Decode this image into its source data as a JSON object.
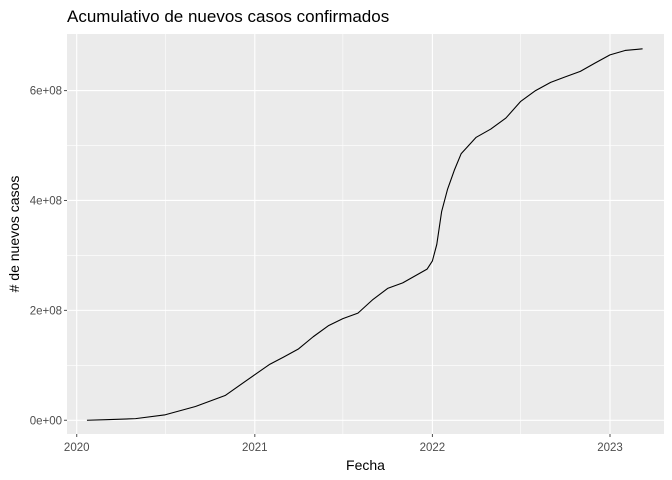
{
  "chart_data": {
    "type": "line",
    "title": "Acumulativo de nuevos casos confirmados",
    "xlabel": "Fecha",
    "ylabel": "# de nuevos casos",
    "xlim": [
      "2019-12-12",
      "2023-04-22"
    ],
    "ylim": [
      -25000000,
      703000000
    ],
    "x_ticks": [
      "2020-01-01",
      "2020-07-01",
      "2021-01-01",
      "2021-07-01",
      "2022-01-01",
      "2022-07-01",
      "2023-01-01"
    ],
    "x_tick_labels": [
      "2020",
      "2021",
      "2022",
      "2023"
    ],
    "y_ticks": [
      0,
      100000000,
      200000000,
      300000000,
      400000000,
      500000000,
      600000000
    ],
    "y_tick_labels": [
      "0e+00",
      "2e+08",
      "4e+08",
      "6e+08"
    ],
    "grid": true,
    "colors": {
      "panel": "#ebebeb",
      "grid": "#ffffff",
      "line": "#000000",
      "ticks": "#4d4d4d"
    },
    "series": [
      {
        "x": [
          "2020-01-22",
          "2020-03-01",
          "2020-05-01",
          "2020-07-01",
          "2020-09-01",
          "2020-11-01",
          "2021-01-01",
          "2021-02-01",
          "2021-03-01",
          "2021-04-01",
          "2021-05-01",
          "2021-06-01",
          "2021-07-01",
          "2021-08-01",
          "2021-09-01",
          "2021-10-01",
          "2021-11-01",
          "2021-12-01",
          "2021-12-21",
          "2022-01-01",
          "2022-01-10",
          "2022-01-20",
          "2022-02-01",
          "2022-02-15",
          "2022-03-01",
          "2022-04-01",
          "2022-05-01",
          "2022-06-01",
          "2022-07-01",
          "2022-08-01",
          "2022-09-01",
          "2022-10-01",
          "2022-11-01",
          "2022-12-01",
          "2023-01-01",
          "2023-02-01",
          "2023-03-09"
        ],
        "y": [
          0,
          1000000,
          3000000,
          10000000,
          25000000,
          45000000,
          83000000,
          102000000,
          115000000,
          130000000,
          152000000,
          172000000,
          185000000,
          195000000,
          220000000,
          240000000,
          250000000,
          265000000,
          275000000,
          290000000,
          320000000,
          380000000,
          420000000,
          455000000,
          485000000,
          515000000,
          530000000,
          550000000,
          580000000,
          600000000,
          615000000,
          625000000,
          635000000,
          650000000,
          665000000,
          673000000,
          676000000
        ]
      }
    ]
  }
}
